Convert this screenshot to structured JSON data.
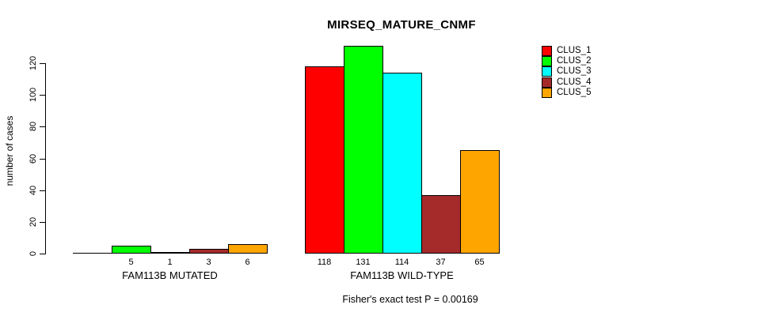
{
  "chart_data": {
    "type": "bar",
    "title": "MIRSEQ_MATURE_CNMF",
    "ylabel": "number of cases",
    "xlabel": "",
    "ylim": [
      0,
      120
    ],
    "yticks": [
      0,
      20,
      40,
      60,
      80,
      100,
      120
    ],
    "grid": false,
    "legend_position": "top-right",
    "series": [
      {
        "name": "CLUS_1",
        "color": "#ff0000"
      },
      {
        "name": "CLUS_2",
        "color": "#00ff00"
      },
      {
        "name": "CLUS_3",
        "color": "#00ffff"
      },
      {
        "name": "CLUS_4",
        "color": "#a52a2a"
      },
      {
        "name": "CLUS_5",
        "color": "#ffa500"
      }
    ],
    "groups": [
      {
        "label": "FAM113B MUTATED",
        "values": [
          0,
          5,
          1,
          3,
          6
        ]
      },
      {
        "label": "FAM113B WILD-TYPE",
        "values": [
          118,
          131,
          114,
          37,
          65
        ]
      }
    ],
    "bar_value_labels_shown": true,
    "zero_bars_unlabeled": true,
    "subtitle": "Fisher's exact test P = 0.00169",
    "colors": {
      "background": "#ffffff",
      "axis": "#000000",
      "text": "#000000"
    }
  }
}
